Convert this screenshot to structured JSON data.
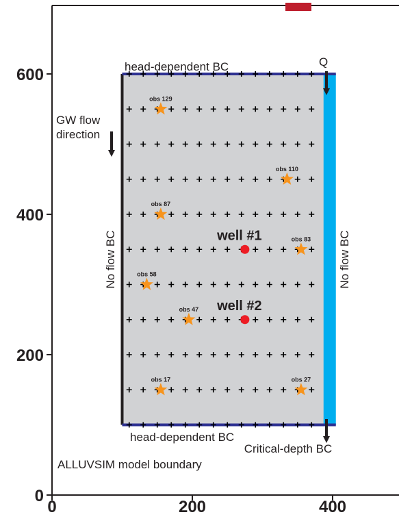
{
  "chart_data": {
    "type": "scatter",
    "xlim": [
      0,
      500
    ],
    "ylim": [
      0,
      700
    ],
    "x_ticks": [
      0,
      200,
      400
    ],
    "y_ticks": [
      0,
      200,
      400,
      600
    ],
    "x_tick_labels": [
      "0",
      "200",
      "400"
    ],
    "y_tick_labels": [
      "0",
      "200",
      "400",
      "600"
    ],
    "model_domain": {
      "x": [
        100,
        390
      ],
      "y": [
        100,
        600
      ]
    },
    "grid_nodes": {
      "x_from": 110,
      "x_to": 380,
      "x_step": 20,
      "rows_y": [
        100,
        150,
        200,
        250,
        300,
        350,
        400,
        450,
        500,
        550,
        600
      ]
    },
    "wells": [
      {
        "label": "well #1",
        "x": 275,
        "y": 350
      },
      {
        "label": "well #2",
        "x": 275,
        "y": 250
      }
    ],
    "observations": [
      {
        "label": "obs 129",
        "x": 155,
        "y": 550
      },
      {
        "label": "obs 110",
        "x": 335,
        "y": 450
      },
      {
        "label": "obs 87",
        "x": 155,
        "y": 400
      },
      {
        "label": "obs 83",
        "x": 355,
        "y": 350
      },
      {
        "label": "obs 58",
        "x": 135,
        "y": 300
      },
      {
        "label": "obs 47",
        "x": 195,
        "y": 250
      },
      {
        "label": "obs 17",
        "x": 155,
        "y": 150
      },
      {
        "label": "obs 27",
        "x": 355,
        "y": 150
      }
    ],
    "annotations": {
      "top_bc": "head-dependent BC",
      "bottom_bc": "head-dependent BC",
      "left_bc": "No flow BC",
      "right_bc": "No flow BC",
      "flow_direction": "GW  flow\ndirection",
      "q": "Q",
      "critical_depth": "Critical-depth BC",
      "model_boundary": "ALLUVSIM model boundary"
    },
    "colors": {
      "domain_fill": "#d1d2d4",
      "head_bc": "#2e3192",
      "right_bc": "#00aeef",
      "well": "#ed1c24",
      "obs": "#f7941d",
      "top_marker": "#be1e2d",
      "axis": "#231f20"
    }
  }
}
